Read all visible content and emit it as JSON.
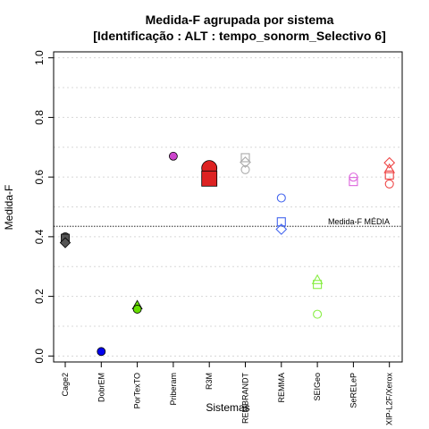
{
  "chart_data": {
    "type": "scatter",
    "title_line1": "Medida-F agrupada por sistema",
    "title_line2": "[Identificação : ALT : tempo_sonorm_Selectivo 6]",
    "xlabel": "Sistemas",
    "ylabel": "Medida-F",
    "ylim": [
      -0.02,
      1.02
    ],
    "yticks": [
      "0.0",
      "0.2",
      "0.4",
      "0.6",
      "0.8",
      "1.0"
    ],
    "ytick_values": [
      0.0,
      0.2,
      0.4,
      0.6,
      0.8,
      1.0
    ],
    "grid": "horizontal dotted",
    "reference_line": {
      "label": "Medida-F MÉDIA",
      "value": 0.435
    },
    "categories": [
      "Cage2",
      "DobrEM",
      "PorTexTO",
      "Priberam",
      "R3M",
      "REMBRANDT",
      "REMMA",
      "SEIGeo",
      "SeRELeP",
      "XIP-L2F/Xerox"
    ],
    "points": [
      {
        "system": "Cage2",
        "shape": "circle",
        "value": 0.4,
        "color": "#555555",
        "filled": true,
        "size": 1
      },
      {
        "system": "Cage2",
        "shape": "square",
        "value": 0.395,
        "color": "#555555",
        "filled": true,
        "size": 1
      },
      {
        "system": "Cage2",
        "shape": "diamond",
        "value": 0.38,
        "color": "#555555",
        "filled": true,
        "size": 1
      },
      {
        "system": "DobrEM",
        "shape": "circle",
        "value": 0.015,
        "color": "#0000ee",
        "filled": true,
        "size": 1
      },
      {
        "system": "PorTexTO",
        "shape": "triangle",
        "value": 0.17,
        "color": "#66dd00",
        "filled": true,
        "size": 1
      },
      {
        "system": "PorTexTO",
        "shape": "circle",
        "value": 0.157,
        "color": "#66dd00",
        "filled": true,
        "size": 1
      },
      {
        "system": "Priberam",
        "shape": "circle",
        "value": 0.67,
        "color": "#cc44cc",
        "filled": true,
        "size": 1
      },
      {
        "system": "R3M",
        "shape": "circle",
        "value": 0.63,
        "color": "#dd2222",
        "filled": true,
        "size": 2
      },
      {
        "system": "R3M",
        "shape": "square",
        "value": 0.595,
        "color": "#dd2222",
        "filled": true,
        "size": 2
      },
      {
        "system": "REMBRANDT",
        "shape": "square",
        "value": 0.665,
        "color": "#aaaaaa",
        "filled": false,
        "size": 1
      },
      {
        "system": "REMBRANDT",
        "shape": "diamond",
        "value": 0.65,
        "color": "#aaaaaa",
        "filled": false,
        "size": 1
      },
      {
        "system": "REMBRANDT",
        "shape": "circle",
        "value": 0.625,
        "color": "#aaaaaa",
        "filled": false,
        "size": 1
      },
      {
        "system": "REMMA",
        "shape": "circle",
        "value": 0.53,
        "color": "#4466ee",
        "filled": false,
        "size": 1
      },
      {
        "system": "REMMA",
        "shape": "square",
        "value": 0.45,
        "color": "#4466ee",
        "filled": false,
        "size": 1
      },
      {
        "system": "REMMA",
        "shape": "diamond",
        "value": 0.425,
        "color": "#4466ee",
        "filled": false,
        "size": 1
      },
      {
        "system": "SEIGeo",
        "shape": "triangle",
        "value": 0.255,
        "color": "#88ee44",
        "filled": false,
        "size": 1
      },
      {
        "system": "SEIGeo",
        "shape": "square",
        "value": 0.24,
        "color": "#88ee44",
        "filled": false,
        "size": 1
      },
      {
        "system": "SEIGeo",
        "shape": "circle",
        "value": 0.14,
        "color": "#88ee44",
        "filled": false,
        "size": 1
      },
      {
        "system": "SeRELeP",
        "shape": "circle",
        "value": 0.6,
        "color": "#dd66dd",
        "filled": false,
        "size": 1
      },
      {
        "system": "SeRELeP",
        "shape": "square",
        "value": 0.585,
        "color": "#dd66dd",
        "filled": false,
        "size": 1
      },
      {
        "system": "XIP-L2F/Xerox",
        "shape": "diamond",
        "value": 0.648,
        "color": "#ee4444",
        "filled": false,
        "size": 1
      },
      {
        "system": "XIP-L2F/Xerox",
        "shape": "triangle",
        "value": 0.627,
        "color": "#ee4444",
        "filled": false,
        "size": 1
      },
      {
        "system": "XIP-L2F/Xerox",
        "shape": "square",
        "value": 0.607,
        "color": "#ee4444",
        "filled": false,
        "size": 1
      },
      {
        "system": "XIP-L2F/Xerox",
        "shape": "circle",
        "value": 0.577,
        "color": "#ee4444",
        "filled": false,
        "size": 1
      }
    ]
  }
}
